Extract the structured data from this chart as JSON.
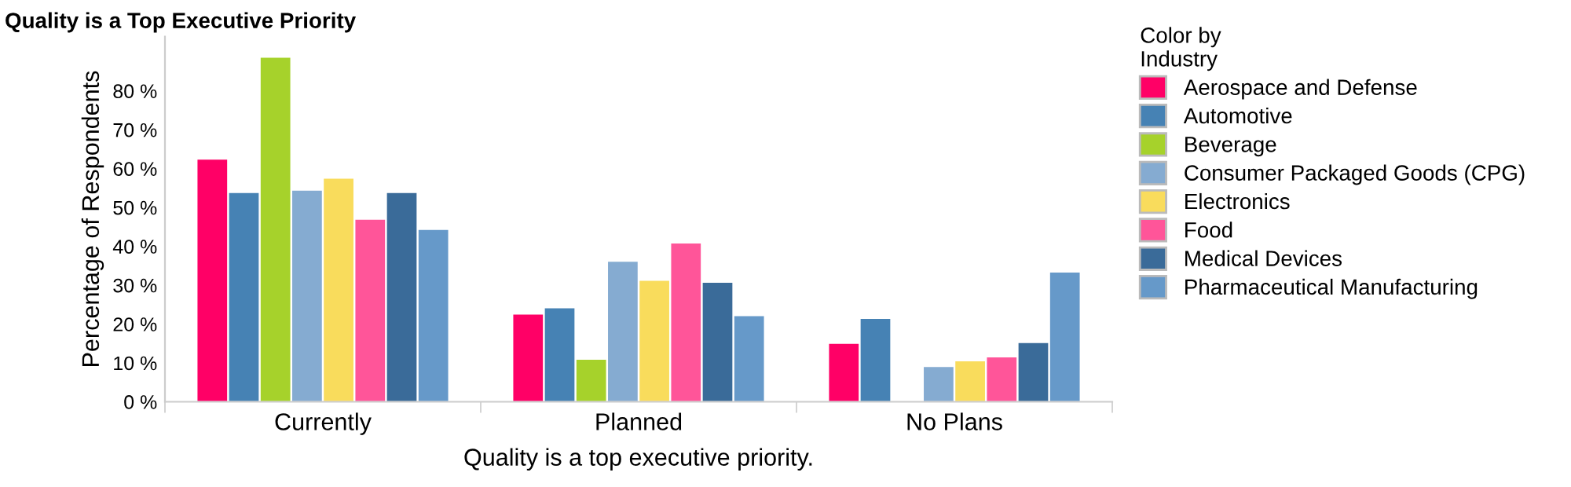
{
  "chart_data": {
    "type": "bar",
    "title": "Quality is a Top Executive Priority",
    "xlabel": "Quality is a top executive priority.",
    "ylabel": "Percentage of Respondents",
    "legend_title": "Color by\nIndustry",
    "categories": [
      "Currently",
      "Planned",
      "No Plans"
    ],
    "series": [
      {
        "name": "Aerospace and Defense",
        "color": "#ff0066",
        "values": [
          62.5,
          22.6,
          15.1
        ]
      },
      {
        "name": "Automotive",
        "color": "#4682b4",
        "values": [
          53.9,
          24.2,
          21.5
        ]
      },
      {
        "name": "Beverage",
        "color": "#a6d22b",
        "values": [
          88.7,
          11.0,
          null
        ]
      },
      {
        "name": "Consumer Packaged Goods (CPG)",
        "color": "#85abd1",
        "values": [
          54.5,
          36.2,
          9.1
        ]
      },
      {
        "name": "Electronics",
        "color": "#f9dc5c",
        "values": [
          57.6,
          31.3,
          10.6
        ]
      },
      {
        "name": "Food",
        "color": "#ff5599",
        "values": [
          47.0,
          40.9,
          11.6
        ]
      },
      {
        "name": "Medical Devices",
        "color": "#3a6b99",
        "values": [
          53.9,
          30.8,
          15.3
        ]
      },
      {
        "name": "Pharmaceutical Manufacturing",
        "color": "#6699c9",
        "values": [
          44.4,
          22.2,
          33.4
        ]
      }
    ],
    "ylim": [
      0,
      94
    ],
    "yticks": [
      {
        "value": 0,
        "label": "0 %"
      },
      {
        "value": 10,
        "label": "10 %"
      },
      {
        "value": 20,
        "label": "20 %"
      },
      {
        "value": 30,
        "label": "30 %"
      },
      {
        "value": 40,
        "label": "40 %"
      },
      {
        "value": 50,
        "label": "50 %"
      },
      {
        "value": 60,
        "label": "60 %"
      },
      {
        "value": 70,
        "label": "70 %"
      },
      {
        "value": 80,
        "label": "80 %"
      }
    ],
    "grid": false,
    "legend": "right"
  }
}
